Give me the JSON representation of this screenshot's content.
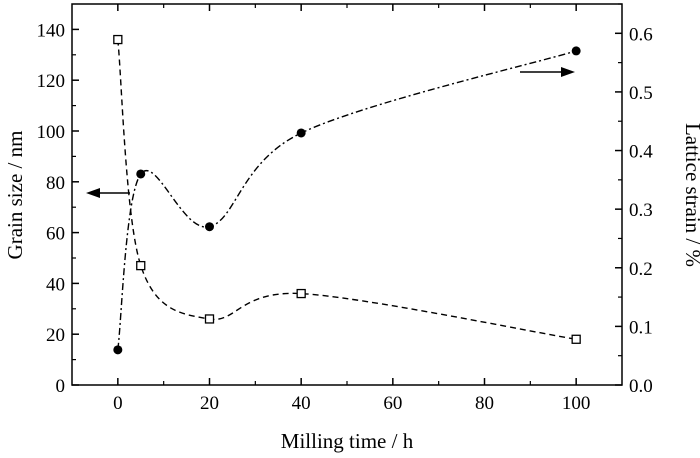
{
  "chart_data": {
    "type": "scatter",
    "title": "",
    "xlabel": "Milling time / h",
    "ylabel_left": "Grain size / nm",
    "ylabel_right": "Lattice strain / %",
    "xlim": [
      -10,
      110
    ],
    "ylim_left": [
      0,
      150
    ],
    "ylim_right": [
      0,
      0.65
    ],
    "x_ticks": [
      0,
      20,
      40,
      60,
      80,
      100
    ],
    "x_tick_labels": [
      "0",
      "20",
      "40",
      "60",
      "80",
      "100"
    ],
    "y_left_ticks": [
      0,
      20,
      40,
      60,
      80,
      100,
      120,
      140
    ],
    "y_left_tick_labels": [
      "0",
      "20",
      "40",
      "60",
      "80",
      "100",
      "120",
      "140"
    ],
    "y_right_ticks": [
      0,
      0.1,
      0.2,
      0.3,
      0.4,
      0.5,
      0.6
    ],
    "y_right_tick_labels": [
      "0.0",
      "0.1",
      "0.2",
      "0.3",
      "0.4",
      "0.5",
      "0.6"
    ],
    "grid": false,
    "series": [
      {
        "axis": "left",
        "marker": "open-square",
        "line": "dashed",
        "x": [
          0,
          5,
          20,
          40,
          100
        ],
        "y": [
          136,
          47,
          26,
          36,
          18
        ]
      },
      {
        "axis": "right",
        "marker": "filled-circle",
        "line": "dash-dot",
        "x": [
          0,
          5,
          20,
          40,
          100
        ],
        "y": [
          0.06,
          0.36,
          0.27,
          0.43,
          0.57
        ]
      }
    ],
    "annotations": [
      {
        "type": "arrow",
        "direction": "left",
        "indicates": "left-axis"
      },
      {
        "type": "arrow",
        "direction": "right",
        "indicates": "right-axis"
      }
    ],
    "colors": {
      "axis": "#000000",
      "markers": "#000000",
      "background": "#ffffff"
    }
  }
}
